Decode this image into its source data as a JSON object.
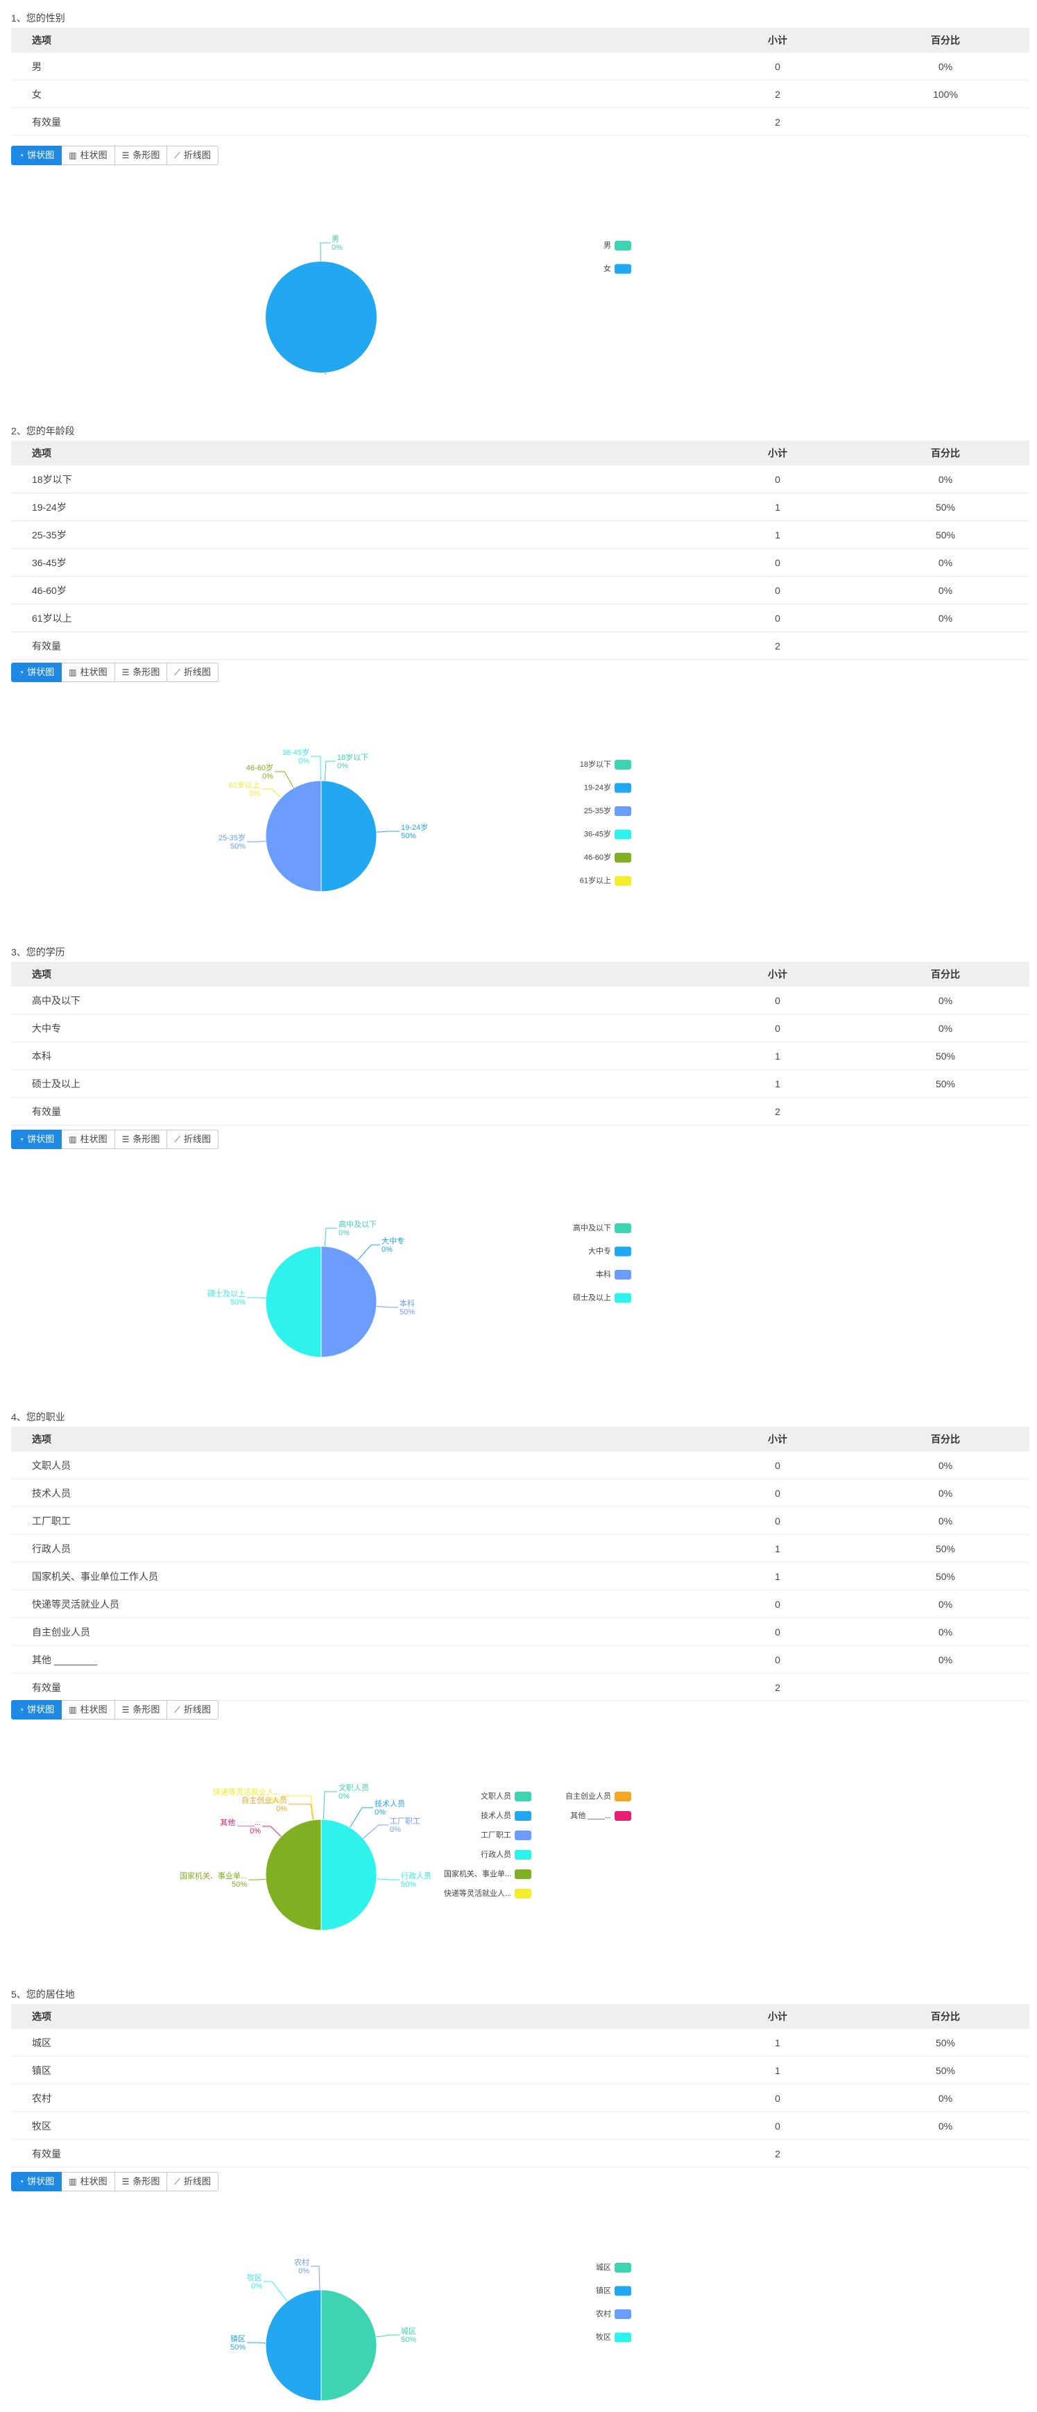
{
  "table_headers": {
    "option": "选项",
    "count": "小计",
    "percent": "百分比"
  },
  "valid_label": "有效量",
  "chart_tabs": [
    "饼状图",
    "柱状图",
    "条形图",
    "折线图"
  ],
  "questions": [
    {
      "title": "1、您的性别",
      "rows": [
        {
          "option": "男",
          "count": "0",
          "percent": "0%"
        },
        {
          "option": "女",
          "count": "2",
          "percent": "100%"
        }
      ],
      "valid": "2",
      "chart_data": {
        "type": "pie",
        "categories": [
          "男",
          "女"
        ],
        "values": [
          0,
          2
        ],
        "percents": [
          "0%",
          "100%"
        ],
        "colors": [
          "#3dd4b2",
          "#22a8f0"
        ],
        "legend": "right"
      }
    },
    {
      "title": "2、您的年龄段",
      "rows": [
        {
          "option": "18岁以下",
          "count": "0",
          "percent": "0%"
        },
        {
          "option": "19-24岁",
          "count": "1",
          "percent": "50%"
        },
        {
          "option": "25-35岁",
          "count": "1",
          "percent": "50%"
        },
        {
          "option": "36-45岁",
          "count": "0",
          "percent": "0%"
        },
        {
          "option": "46-60岁",
          "count": "0",
          "percent": "0%"
        },
        {
          "option": "61岁以上",
          "count": "0",
          "percent": "0%"
        }
      ],
      "valid": "2",
      "chart_data": {
        "type": "pie",
        "categories": [
          "18岁以下",
          "19-24岁",
          "25-35岁",
          "36-45岁",
          "46-60岁",
          "61岁以上"
        ],
        "values": [
          0,
          1,
          1,
          0,
          0,
          0
        ],
        "percents": [
          "0%",
          "50%",
          "50%",
          "0%",
          "0%",
          "0%"
        ],
        "colors": [
          "#3dd4b2",
          "#22a8f0",
          "#6b9dff",
          "#2ef2ec",
          "#7fb021",
          "#f2ee2a"
        ],
        "legend": "right"
      }
    },
    {
      "title": "3、您的学历",
      "rows": [
        {
          "option": "高中及以下",
          "count": "0",
          "percent": "0%"
        },
        {
          "option": "大中专",
          "count": "0",
          "percent": "0%"
        },
        {
          "option": "本科",
          "count": "1",
          "percent": "50%"
        },
        {
          "option": "硕士及以上",
          "count": "1",
          "percent": "50%"
        }
      ],
      "valid": "2",
      "chart_data": {
        "type": "pie",
        "categories": [
          "高中及以下",
          "大中专",
          "本科",
          "硕士及以上"
        ],
        "values": [
          0,
          0,
          1,
          1
        ],
        "percents": [
          "0%",
          "0%",
          "50%",
          "50%"
        ],
        "colors": [
          "#3dd4b2",
          "#22a8f0",
          "#6b9dff",
          "#2ef2ec"
        ],
        "legend": "right"
      }
    },
    {
      "title": "4、您的职业",
      "rows": [
        {
          "option": "文职人员",
          "count": "0",
          "percent": "0%"
        },
        {
          "option": "技术人员",
          "count": "0",
          "percent": "0%"
        },
        {
          "option": "工厂职工",
          "count": "0",
          "percent": "0%"
        },
        {
          "option": "行政人员",
          "count": "1",
          "percent": "50%"
        },
        {
          "option": "国家机关、事业单位工作人员",
          "count": "1",
          "percent": "50%"
        },
        {
          "option": "快递等灵活就业人员",
          "count": "0",
          "percent": "0%"
        },
        {
          "option": "自主创业人员",
          "count": "0",
          "percent": "0%"
        },
        {
          "option": "其他 ________",
          "count": "0",
          "percent": "0%"
        }
      ],
      "valid": "2",
      "chart_data": {
        "type": "pie",
        "categories": [
          "文职人员",
          "技术人员",
          "工厂职工",
          "行政人员",
          "国家机关、事业单...",
          "快递等灵活就业人...",
          "自主创业人员",
          "其他 ____..."
        ],
        "values": [
          0,
          0,
          0,
          1,
          1,
          0,
          0,
          0
        ],
        "percents": [
          "0%",
          "0%",
          "0%",
          "50%",
          "50%",
          "0%",
          "0%",
          "0%"
        ],
        "colors": [
          "#3dd4b2",
          "#22a8f0",
          "#6b9dff",
          "#2ef2ec",
          "#7fb021",
          "#f2ee2a",
          "#f5a623",
          "#e91e73"
        ],
        "legend": "right"
      }
    },
    {
      "title": "5、您的居住地",
      "rows": [
        {
          "option": "城区",
          "count": "1",
          "percent": "50%"
        },
        {
          "option": "镇区",
          "count": "1",
          "percent": "50%"
        },
        {
          "option": "农村",
          "count": "0",
          "percent": "0%"
        },
        {
          "option": "牧区",
          "count": "0",
          "percent": "0%"
        }
      ],
      "valid": "2",
      "chart_data": {
        "type": "pie",
        "categories": [
          "城区",
          "镇区",
          "农村",
          "牧区"
        ],
        "values": [
          1,
          1,
          0,
          0
        ],
        "percents": [
          "50%",
          "50%",
          "0%",
          "0%"
        ],
        "colors": [
          "#3dd4b2",
          "#22a8f0",
          "#6b9dff",
          "#2ef2ec"
        ],
        "legend": "right"
      }
    }
  ]
}
